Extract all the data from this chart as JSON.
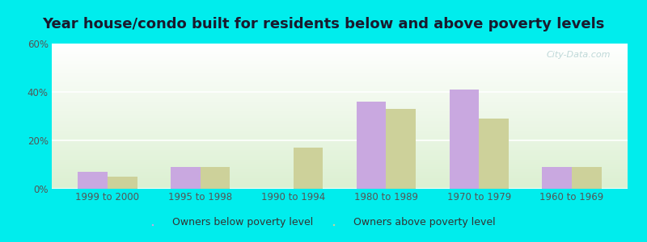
{
  "title": "Year house/condo built for residents below and above poverty levels",
  "categories": [
    "1999 to 2000",
    "1995 to 1998",
    "1990 to 1994",
    "1980 to 1989",
    "1970 to 1979",
    "1960 to 1969"
  ],
  "below_poverty": [
    7,
    9,
    0,
    36,
    41,
    9
  ],
  "above_poverty": [
    5,
    9,
    17,
    33,
    29,
    9
  ],
  "below_color": "#c9a8e0",
  "above_color": "#cdd19a",
  "ylim": [
    0,
    60
  ],
  "yticks": [
    0,
    20,
    40,
    60
  ],
  "ytick_labels": [
    "0%",
    "20%",
    "40%",
    "60%"
  ],
  "outer_background": "#00eded",
  "legend_below_label": "Owners below poverty level",
  "legend_above_label": "Owners above poverty level",
  "bar_width": 0.32,
  "title_fontsize": 13,
  "watermark": "City-Data.com"
}
